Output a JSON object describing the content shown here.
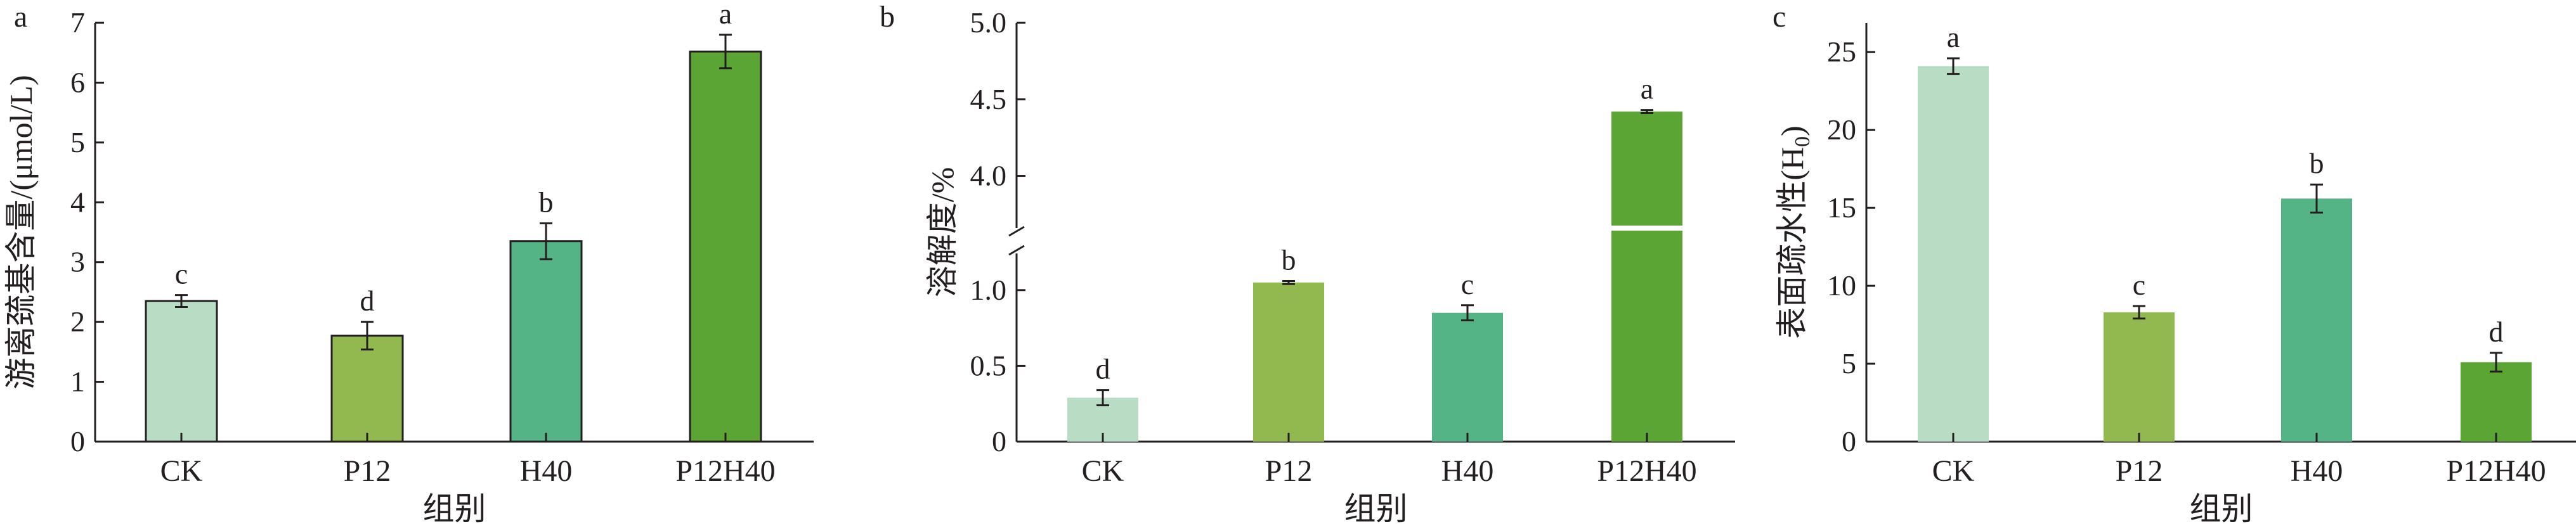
{
  "chart_data": [
    {
      "type": "bar",
      "panel_label": "a",
      "categories": [
        "CK",
        "P12",
        "H40",
        "P12H40"
      ],
      "values": [
        2.35,
        1.77,
        3.35,
        6.52
      ],
      "errors": [
        0.1,
        0.23,
        0.3,
        0.28
      ],
      "letters": [
        "c",
        "d",
        "b",
        "a"
      ],
      "colors": [
        "#b9dcc4",
        "#91b94f",
        "#55b486",
        "#5aa534"
      ],
      "bar_outline": true,
      "xlabel": "组别",
      "ylabel": "游离巯基含量/(μmol/L)",
      "ylim": [
        0,
        7
      ],
      "yticks": [
        "0",
        "1",
        "2",
        "3",
        "4",
        "5",
        "6",
        "7"
      ],
      "grid": false
    },
    {
      "type": "bar",
      "panel_label": "b",
      "categories": [
        "CK",
        "P12",
        "H40",
        "P12H40"
      ],
      "values": [
        0.29,
        1.05,
        0.85,
        4.42
      ],
      "errors": [
        0.05,
        0.01,
        0.05,
        0.01
      ],
      "letters": [
        "d",
        "b",
        "c",
        "a"
      ],
      "colors": [
        "#b9dcc4",
        "#91b94f",
        "#55b486",
        "#5aa534"
      ],
      "bar_outline": false,
      "broken_axis": true,
      "xlabel": "组别",
      "ylabel": "溶解度/%",
      "ylim_lower": [
        0,
        1.2
      ],
      "ylim_upper": [
        3.7,
        5.0
      ],
      "yticks_lower": [
        "0",
        "0.5",
        "1.0"
      ],
      "yticks_upper": [
        "4.0",
        "4.5",
        "5.0"
      ],
      "grid": false
    },
    {
      "type": "bar",
      "panel_label": "c",
      "categories": [
        "CK",
        "P12",
        "H40",
        "P12H40"
      ],
      "values": [
        24.1,
        8.3,
        15.6,
        5.1
      ],
      "errors": [
        0.5,
        0.4,
        0.9,
        0.6
      ],
      "letters": [
        "a",
        "c",
        "b",
        "d"
      ],
      "colors": [
        "#b9dcc4",
        "#91b94f",
        "#55b486",
        "#5aa534"
      ],
      "bar_outline": false,
      "xlabel": "组别",
      "ylabel": "表面疏水性(H",
      "ylabel_sub": "0",
      "ylabel_close": ")",
      "ylim": [
        0,
        27
      ],
      "yticks": [
        "0",
        "5",
        "10",
        "15",
        "20",
        "25"
      ],
      "grid": false
    }
  ]
}
